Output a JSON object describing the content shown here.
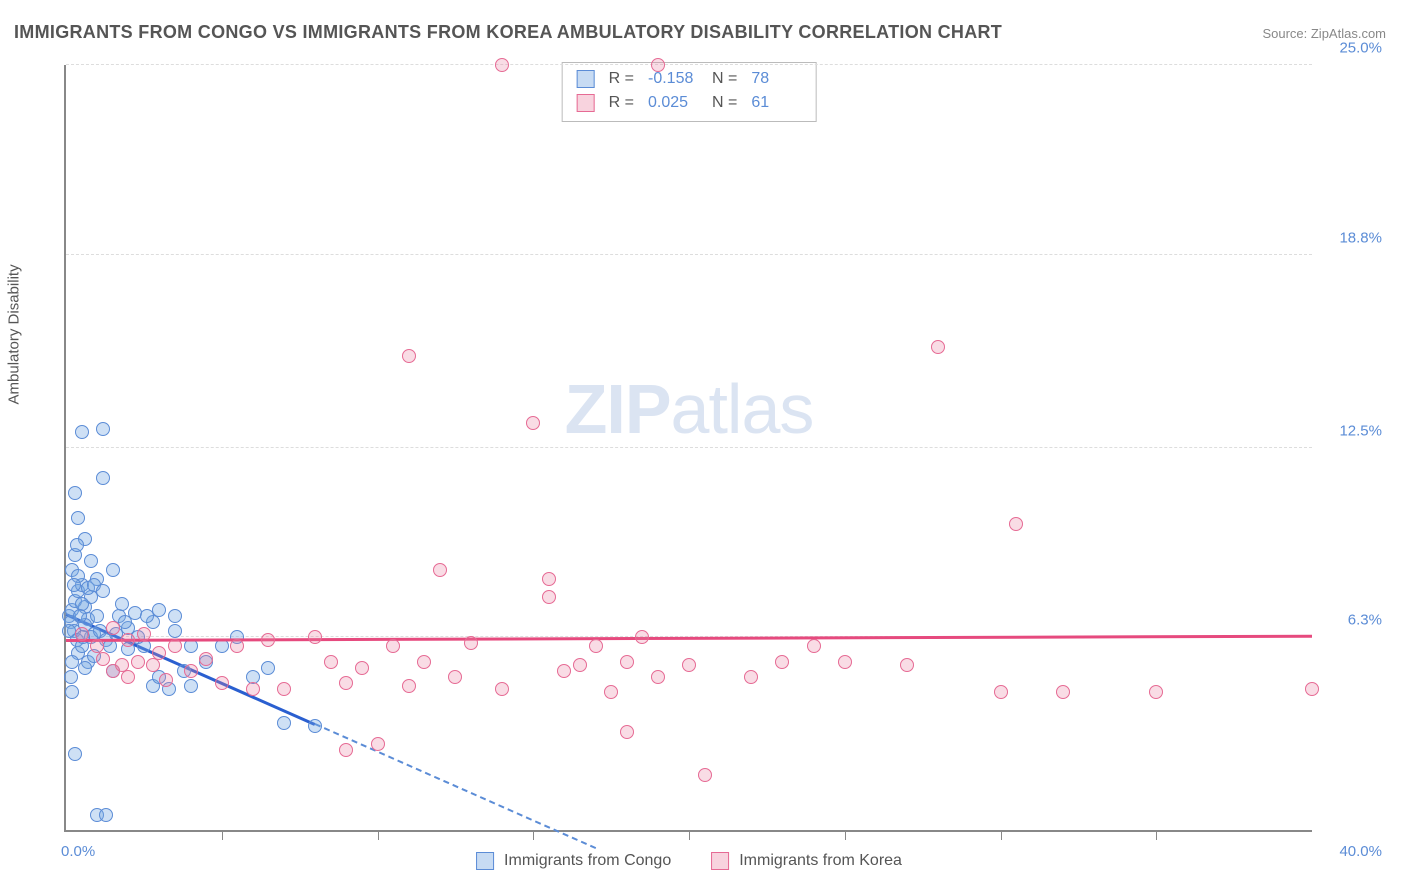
{
  "title": "IMMIGRANTS FROM CONGO VS IMMIGRANTS FROM KOREA AMBULATORY DISABILITY CORRELATION CHART",
  "source": "Source: ZipAtlas.com",
  "yaxis_label": "Ambulatory Disability",
  "watermark_bold": "ZIP",
  "watermark_rest": "atlas",
  "chart": {
    "type": "scatter",
    "xlim": [
      0,
      40
    ],
    "ylim": [
      0,
      25
    ],
    "background_color": "#ffffff",
    "grid_color": "#dddddd",
    "grid_style": "dashed",
    "axis_color": "#888888",
    "label_color": "#5b8cd6",
    "tick_fontsize": 15,
    "yticks": [
      {
        "v": 6.3,
        "label": "6.3%"
      },
      {
        "v": 12.5,
        "label": "12.5%"
      },
      {
        "v": 18.8,
        "label": "18.8%"
      },
      {
        "v": 25.0,
        "label": "25.0%"
      }
    ],
    "xticks": [
      5,
      10,
      15,
      20,
      25,
      30,
      35
    ],
    "x_left_label": "0.0%",
    "x_right_label": "40.0%",
    "series": [
      {
        "key": "a",
        "name": "Immigrants from Congo",
        "color_fill": "rgba(115,165,225,0.35)",
        "color_stroke": "#5b8cd6",
        "R": "-0.158",
        "N": "78",
        "trend": {
          "y_at_x0": 7.1,
          "slope": -0.45,
          "solid_xmax": 8.0,
          "dash_xmax": 17.0,
          "solid_color": "#2a5fd0",
          "dash_color": "#5b8cd6"
        },
        "points": [
          [
            0.1,
            7.0
          ],
          [
            0.2,
            7.2
          ],
          [
            0.15,
            6.8
          ],
          [
            0.3,
            7.5
          ],
          [
            0.25,
            6.5
          ],
          [
            0.4,
            7.8
          ],
          [
            0.35,
            6.2
          ],
          [
            0.5,
            8.0
          ],
          [
            0.2,
            8.5
          ],
          [
            0.3,
            9.0
          ],
          [
            0.4,
            5.8
          ],
          [
            0.5,
            6.0
          ],
          [
            0.6,
            7.3
          ],
          [
            0.7,
            6.9
          ],
          [
            0.8,
            7.6
          ],
          [
            0.9,
            6.4
          ],
          [
            1.0,
            8.2
          ],
          [
            0.6,
            9.5
          ],
          [
            0.4,
            10.2
          ],
          [
            0.3,
            11.0
          ],
          [
            1.2,
            11.5
          ],
          [
            0.5,
            13.0
          ],
          [
            1.2,
            13.1
          ],
          [
            0.3,
            2.5
          ],
          [
            1.0,
            0.5
          ],
          [
            1.3,
            0.5
          ],
          [
            0.7,
            5.5
          ],
          [
            1.5,
            5.2
          ],
          [
            1.7,
            7.0
          ],
          [
            1.8,
            7.4
          ],
          [
            2.0,
            6.6
          ],
          [
            2.0,
            5.9
          ],
          [
            2.2,
            7.1
          ],
          [
            2.5,
            6.0
          ],
          [
            2.8,
            4.7
          ],
          [
            2.8,
            6.8
          ],
          [
            3.0,
            7.2
          ],
          [
            3.0,
            5.0
          ],
          [
            3.3,
            4.6
          ],
          [
            3.5,
            6.5
          ],
          [
            3.5,
            7.0
          ],
          [
            4.0,
            6.0
          ],
          [
            4.0,
            4.7
          ],
          [
            4.5,
            5.5
          ],
          [
            5.0,
            6.0
          ],
          [
            5.5,
            6.3
          ],
          [
            6.0,
            5.0
          ],
          [
            6.5,
            5.3
          ],
          [
            7.0,
            3.5
          ],
          [
            8.0,
            3.4
          ],
          [
            1.5,
            8.5
          ],
          [
            0.8,
            8.8
          ],
          [
            0.2,
            5.5
          ],
          [
            0.1,
            6.5
          ],
          [
            0.15,
            5.0
          ],
          [
            0.2,
            4.5
          ],
          [
            0.6,
            6.7
          ],
          [
            0.7,
            7.9
          ],
          [
            0.8,
            6.3
          ],
          [
            0.9,
            8.0
          ],
          [
            1.0,
            7.0
          ],
          [
            1.1,
            6.5
          ],
          [
            1.2,
            7.8
          ],
          [
            1.3,
            6.2
          ],
          [
            0.5,
            7.4
          ],
          [
            0.4,
            8.3
          ],
          [
            0.35,
            9.3
          ],
          [
            0.45,
            7.0
          ],
          [
            0.55,
            6.3
          ],
          [
            0.25,
            8.0
          ],
          [
            0.6,
            5.3
          ],
          [
            0.9,
            5.7
          ],
          [
            1.4,
            6.0
          ],
          [
            1.6,
            6.4
          ],
          [
            1.9,
            6.8
          ],
          [
            2.3,
            6.3
          ],
          [
            2.6,
            7.0
          ],
          [
            3.8,
            5.2
          ]
        ]
      },
      {
        "key": "b",
        "name": "Immigrants from Korea",
        "color_fill": "rgba(235,130,160,0.28)",
        "color_stroke": "#e66a94",
        "R": "0.025",
        "N": "61",
        "trend": {
          "y_at_x0": 6.25,
          "slope": 0.0035,
          "solid_xmax": 40.0,
          "dash_xmax": 40.0,
          "solid_color": "#e64a7e",
          "dash_color": "#e66a94"
        },
        "points": [
          [
            0.5,
            6.4
          ],
          [
            1.0,
            6.0
          ],
          [
            1.2,
            5.6
          ],
          [
            1.5,
            5.2
          ],
          [
            1.5,
            6.6
          ],
          [
            1.8,
            5.4
          ],
          [
            2.0,
            6.2
          ],
          [
            2.0,
            5.0
          ],
          [
            2.3,
            5.5
          ],
          [
            2.5,
            6.4
          ],
          [
            2.8,
            5.4
          ],
          [
            3.0,
            5.8
          ],
          [
            3.2,
            4.9
          ],
          [
            3.5,
            6.0
          ],
          [
            4.0,
            5.2
          ],
          [
            4.5,
            5.6
          ],
          [
            5.0,
            4.8
          ],
          [
            5.5,
            6.0
          ],
          [
            6.0,
            4.6
          ],
          [
            6.5,
            6.2
          ],
          [
            7.0,
            4.6
          ],
          [
            8.0,
            6.3
          ],
          [
            8.5,
            5.5
          ],
          [
            9.0,
            4.8
          ],
          [
            9.5,
            5.3
          ],
          [
            10.0,
            2.8
          ],
          [
            10.5,
            6.0
          ],
          [
            11.0,
            4.7
          ],
          [
            11.5,
            5.5
          ],
          [
            12.0,
            8.5
          ],
          [
            11.0,
            15.5
          ],
          [
            12.5,
            5.0
          ],
          [
            13.0,
            6.1
          ],
          [
            14.0,
            4.6
          ],
          [
            14.0,
            25.0
          ],
          [
            15.0,
            13.3
          ],
          [
            15.5,
            7.6
          ],
          [
            15.5,
            8.2
          ],
          [
            16.0,
            5.2
          ],
          [
            16.5,
            5.4
          ],
          [
            17.0,
            6.0
          ],
          [
            17.5,
            4.5
          ],
          [
            18.0,
            5.5
          ],
          [
            18.5,
            6.3
          ],
          [
            19.0,
            5.0
          ],
          [
            18.0,
            3.2
          ],
          [
            19.0,
            25.0
          ],
          [
            20.0,
            5.4
          ],
          [
            20.5,
            1.8
          ],
          [
            22.0,
            5.0
          ],
          [
            23.0,
            5.5
          ],
          [
            24.0,
            6.0
          ],
          [
            25.0,
            5.5
          ],
          [
            27.0,
            5.4
          ],
          [
            28.0,
            15.8
          ],
          [
            30.0,
            4.5
          ],
          [
            30.5,
            10.0
          ],
          [
            32.0,
            4.5
          ],
          [
            35.0,
            4.5
          ],
          [
            40.0,
            4.6
          ],
          [
            9.0,
            2.6
          ]
        ]
      }
    ]
  },
  "rlegend": {
    "R_label": "R =",
    "N_label": "N ="
  }
}
